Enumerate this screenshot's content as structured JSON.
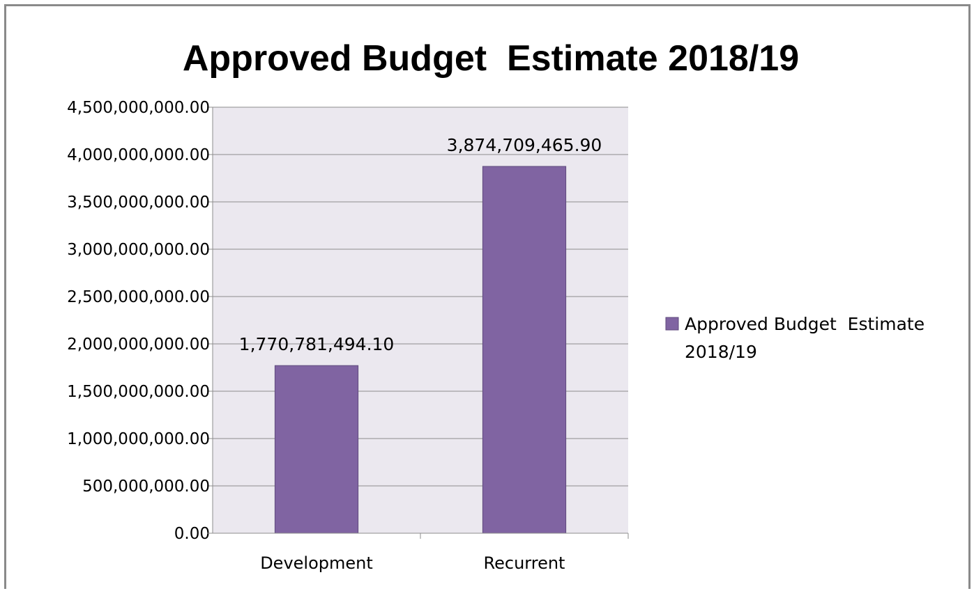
{
  "chart_data": {
    "type": "bar",
    "title": "Approved Budget  Estimate 2018/19",
    "categories": [
      "Development",
      "Recurrent"
    ],
    "series": [
      {
        "name": "Approved Budget  Estimate 2018/19",
        "values": [
          1770781494.1,
          3874709465.9
        ],
        "data_labels": [
          "1,770,781,494.10",
          "3,874,709,465.90"
        ],
        "color": "#8064a2"
      }
    ],
    "ylim": [
      0,
      4500000000
    ],
    "y_ticks": [
      "0.00",
      "500,000,000.00",
      "1,000,000,000.00",
      "1,500,000,000.00",
      "2,000,000,000.00",
      "2,500,000,000.00",
      "3,000,000,000.00",
      "3,500,000,000.00",
      "4,000,000,000.00",
      "4,500,000,000.00"
    ],
    "y_tick_values": [
      0,
      500000000,
      1000000000,
      1500000000,
      2000000000,
      2500000000,
      3000000000,
      3500000000,
      4000000000,
      4500000000
    ],
    "grid": true,
    "legend": {
      "position": "right",
      "lines": [
        "Approved Budget  Estimate",
        "2018/19"
      ]
    },
    "plot_background": "#ebe8ef",
    "bar_outline": "#5f4a7c",
    "gridline_color": "#8c8c8c"
  }
}
